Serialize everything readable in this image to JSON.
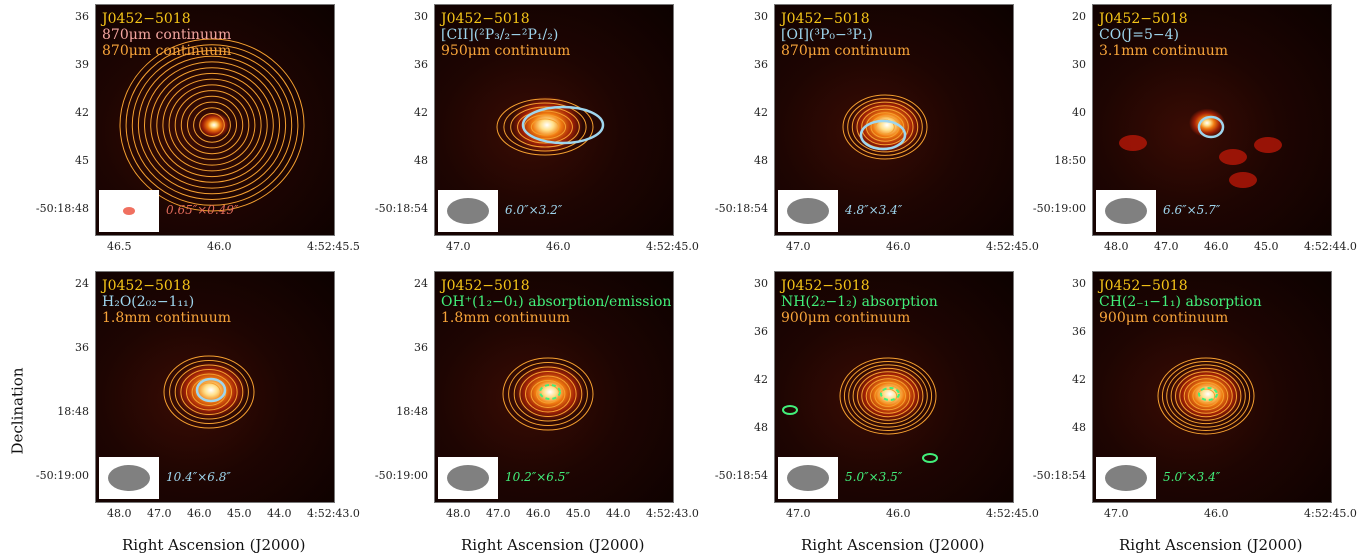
{
  "panels": [
    {
      "source": "J0452−5018",
      "line": "870μm continuum",
      "continuum": "870μm continuum",
      "beam": "0.65″×0.49″",
      "yticks": [
        "36",
        "39",
        "42",
        "45",
        "-50:18:48"
      ],
      "xticks": [
        "46.5",
        "46.0",
        "4:52:45.5"
      ]
    },
    {
      "source": "J0452−5018",
      "line": "[CII](²P₃/₂−²P₁/₂)",
      "continuum": "950μm continuum",
      "beam": "6.0″×3.2″",
      "yticks": [
        "30",
        "36",
        "42",
        "48",
        "-50:18:54"
      ],
      "xticks": [
        "47.0",
        "46.0",
        "4:52:45.0"
      ]
    },
    {
      "source": "J0452−5018",
      "line": "[OI](³P₀−³P₁)",
      "continuum": "870μm continuum",
      "beam": "4.8″×3.4″",
      "yticks": [
        "30",
        "36",
        "42",
        "48",
        "-50:18:54"
      ],
      "xticks": [
        "47.0",
        "46.0",
        "4:52:45.0"
      ]
    },
    {
      "source": "J0452−5018",
      "line": "CO(J=5−4)",
      "continuum": "3.1mm continuum",
      "beam": "6.6″×5.7″",
      "yticks": [
        "20",
        "30",
        "40",
        "18:50",
        "-50:19:00"
      ],
      "xticks": [
        "48.0",
        "47.0",
        "46.0",
        "45.0",
        "4:52:44.0"
      ]
    },
    {
      "source": "J0452−5018",
      "line": "H₂O(2₀₂−1₁₁)",
      "continuum": "1.8mm continuum",
      "beam": "10.4″×6.8″",
      "yticks": [
        "24",
        "36",
        "18:48",
        "-50:19:00"
      ],
      "xticks": [
        "48.0",
        "47.0",
        "46.0",
        "45.0",
        "44.0",
        "4:52:43.0"
      ]
    },
    {
      "source": "J0452−5018",
      "line": "OH⁺(1₂−0₁) absorption/emission",
      "continuum": "1.8mm continuum",
      "beam": "10.2″×6.5″",
      "yticks": [
        "24",
        "36",
        "18:48",
        "-50:19:00"
      ],
      "xticks": [
        "48.0",
        "47.0",
        "46.0",
        "45.0",
        "44.0",
        "4:52:43.0"
      ]
    },
    {
      "source": "J0452−5018",
      "line": "NH(2₂−1₂) absorption",
      "continuum": "900μm continuum",
      "beam": "5.0″×3.5″",
      "yticks": [
        "30",
        "36",
        "42",
        "48",
        "-50:18:54"
      ],
      "xticks": [
        "47.0",
        "46.0",
        "4:52:45.0"
      ]
    },
    {
      "source": "J0452−5018",
      "line": "CH(2₋₁−1₁) absorption",
      "continuum": "900μm continuum",
      "beam": "5.0″×3.4″",
      "yticks": [
        "30",
        "36",
        "42",
        "48",
        "-50:18:54"
      ],
      "xticks": [
        "47.0",
        "46.0",
        "4:52:45.0"
      ]
    }
  ],
  "axes": {
    "ylabel": "Declination",
    "xlabel": "Right Ascension (J2000)"
  }
}
